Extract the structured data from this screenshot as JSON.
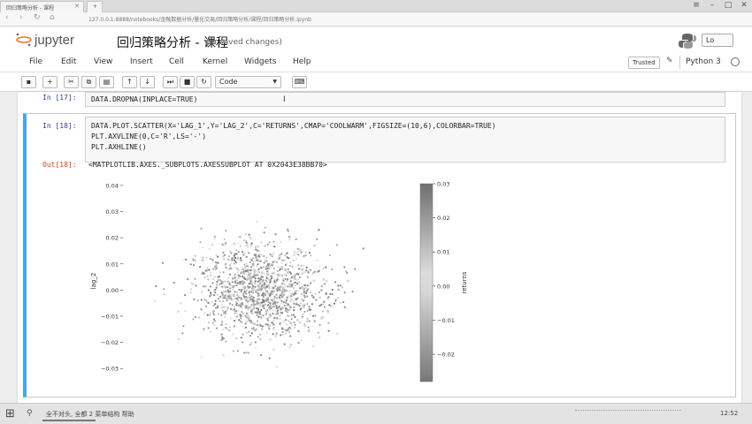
{
  "browser": {
    "tab_title": "回归策略分析 - 课程",
    "url": "127.0.0.1:8888/notebooks/金融数据分析/量化交易/回归策略分析/课程/回归策略分析.ipynb"
  },
  "jupyter": {
    "logo_text": "jupyter",
    "notebook_title": "回归策略分析 - 课程",
    "save_status": "(unsaved changes)",
    "logout_label": "Lo"
  },
  "menu": {
    "items": [
      "File",
      "Edit",
      "View",
      "Insert",
      "Cell",
      "Kernel",
      "Widgets",
      "Help"
    ],
    "trusted": "Trusted",
    "kernel": "Python 3"
  },
  "toolbar": {
    "cell_type": "Code"
  },
  "cells": {
    "cell17": {
      "prompt": "In [17]:",
      "code": "DATA.DROPNA(INPLACE=TRUE)"
    },
    "cell18": {
      "prompt": "In [18]:",
      "line1": "DATA.PLOT.SCATTER(X='LAG_1',Y='LAG_2',C='RETURNS',CMAP='COOLWARM',FIGSIZE=(10,6),COLORBAR=TRUE)",
      "line2": "PLT.AXVLINE(0,C='R',LS='-')",
      "line3": "PLT.AXHLINE()",
      "out_prompt": "Out[18]:",
      "out_text": "<MATPLOTLIB.AXES._SUBPLOTS.AXESSUBPLOT AT 0X2043E38BB70>"
    }
  },
  "chart_data": {
    "type": "scatter",
    "ylabel": "lag_2",
    "yticks": [
      "0.04",
      "0.03",
      "0.02",
      "0.01",
      "0.00",
      "−0.01",
      "−0.02",
      "−0.03"
    ],
    "ylim": [
      -0.035,
      0.042
    ],
    "xlim": [
      -0.035,
      0.035
    ],
    "points_center": [
      0.0,
      0.0
    ],
    "points_spread_sd": 0.009,
    "colorbar": {
      "label": "returns",
      "ticks": [
        "0.03",
        "0.02",
        "0.01",
        "0.00",
        "−0.01",
        "−0.02"
      ],
      "range": [
        -0.028,
        0.03
      ]
    }
  },
  "taskbar": {
    "time": "12:52",
    "status_text": "全不对头, 全都 2 菜单结构 帮助"
  }
}
